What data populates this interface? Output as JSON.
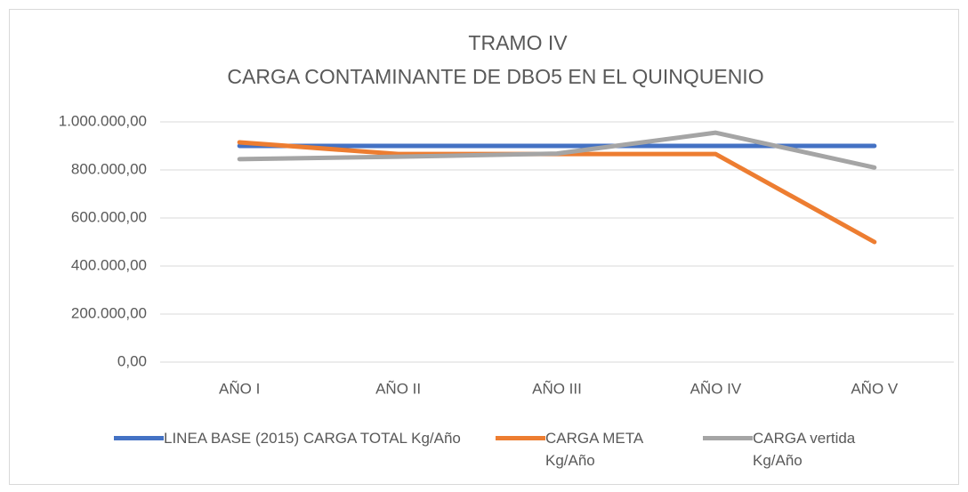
{
  "chart_data": {
    "type": "line",
    "title": "TRAMO IV",
    "subtitle": "CARGA CONTAMINANTE DE DBO5 EN EL QUINQUENIO",
    "categories": [
      "AÑO I",
      "AÑO II",
      "AÑO III",
      "AÑO IV",
      "AÑO V"
    ],
    "series": [
      {
        "name": "LINEA BASE (2015) CARGA TOTAL Kg/Año",
        "color": "#4472c4",
        "values": [
          900000,
          900000,
          900000,
          900000,
          900000
        ]
      },
      {
        "name": "CARGA META Kg/Año",
        "color": "#ed7d31",
        "values": [
          915000,
          866000,
          866000,
          866000,
          500000
        ]
      },
      {
        "name": "CARGA vertida Kg/Año",
        "color": "#a5a5a5",
        "values": [
          845000,
          855000,
          868000,
          955000,
          810000
        ]
      }
    ],
    "ylim": [
      0,
      1000000
    ],
    "yticks": [
      {
        "value": 0,
        "label": "0,00"
      },
      {
        "value": 200000,
        "label": "200.000,00"
      },
      {
        "value": 400000,
        "label": "400.000,00"
      },
      {
        "value": 600000,
        "label": "600.000,00"
      },
      {
        "value": 800000,
        "label": "800.000,00"
      },
      {
        "value": 1000000,
        "label": "1.000.000,00"
      }
    ],
    "grid": true,
    "legend": "bottom"
  }
}
